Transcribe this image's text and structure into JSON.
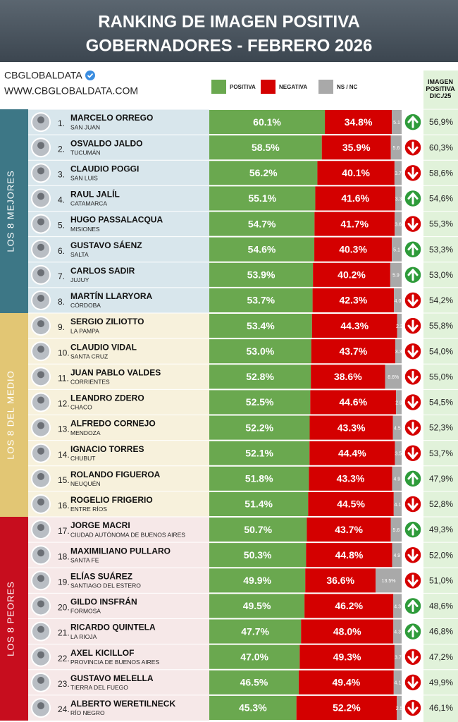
{
  "chart_data": {
    "type": "bar",
    "orientation": "horizontal",
    "stacked": true,
    "title": "RANKING DE IMAGEN POSITIVA",
    "subtitle": "GOBERNADORES - FEBRERO 2026",
    "brand": "CBGLOBALDATA",
    "website": "WWW.CBGLOBALDATA.COM",
    "xlim": [
      0,
      100
    ],
    "ranks": [
      "1.",
      "2.",
      "3.",
      "4.",
      "5.",
      "6.",
      "7.",
      "8.",
      "9.",
      "10.",
      "11.",
      "12.",
      "13.",
      "14.",
      "15.",
      "16.",
      "17.",
      "18.",
      "19.",
      "20.",
      "21.",
      "22.",
      "23.",
      "24."
    ],
    "categories": [
      "MARCELO ORREGO",
      "OSVALDO JALDO",
      "CLAUDIO POGGI",
      "RAUL JALÍL",
      "HUGO PASSALACQUA",
      "GUSTAVO SÁENZ",
      "CARLOS SADIR",
      "MARTÍN LLARYORA",
      "SERGIO ZILIOTTO",
      "CLAUDIO VIDAL",
      "JUAN PABLO VALDES",
      "LEANDRO ZDERO",
      "ALFREDO CORNEJO",
      "IGNACIO TORRES",
      "ROLANDO FIGUEROA",
      "ROGELIO FRIGERIO",
      "JORGE MACRI",
      "MAXIMILIANO PULLARO",
      "ELÍAS SUÁREZ",
      "GILDO INSFRÁN",
      "RICARDO QUINTELA",
      "AXEL KICILLOF",
      "GUSTAVO MELELLA",
      "ALBERTO WERETILNECK"
    ],
    "provinces": [
      "SAN JUAN",
      "TUCUMÁN",
      "SAN LUIS",
      "CATAMARCA",
      "MISIONES",
      "SALTA",
      "JUJUY",
      "CÓRDOBA",
      "LA PAMPA",
      "SANTA CRUZ",
      "CORRIENTES",
      "CHACO",
      "MENDOZA",
      "CHUBUT",
      "NEUQUÉN",
      "ENTRE RÍOS",
      "CIUDAD AUTÓNOMA DE BUENOS AIRES",
      "SANTA FE",
      "SANTIAGO DEL ESTERO",
      "FORMOSA",
      "LA RIOJA",
      "PROVINCIA DE BUENOS AIRES",
      "TIERRA DEL FUEGO",
      "RÍO NEGRO"
    ],
    "groups": [
      {
        "label": "LOS 8 MEJORES",
        "color": "#3d7786",
        "tint": "#d8e6ec"
      },
      {
        "label": "LOS 8 DEL MEDIO",
        "color": "#e2c674",
        "tint": "#f7f1dc"
      },
      {
        "label": "LOS 8 PEORES",
        "color": "#c70d1e",
        "tint": "#f6e8e8"
      }
    ],
    "series": [
      {
        "name": "POSITIVA",
        "color": "#6aa84f",
        "values": [
          60.1,
          58.5,
          56.2,
          55.1,
          54.7,
          54.6,
          53.9,
          53.7,
          53.4,
          53.0,
          52.8,
          52.5,
          52.2,
          52.1,
          51.8,
          51.4,
          50.7,
          50.3,
          49.9,
          49.5,
          47.7,
          47.0,
          46.5,
          45.3
        ],
        "value_labels": [
          "60.1%",
          "58.5%",
          "56.2%",
          "55.1%",
          "54.7%",
          "54.6%",
          "53.9%",
          "53.7%",
          "53.4%",
          "53.0%",
          "52.8%",
          "52.5%",
          "52.2%",
          "52.1%",
          "51.8%",
          "51.4%",
          "50.7%",
          "50.3%",
          "49.9%",
          "49.5%",
          "47.7%",
          "47.0%",
          "46.5%",
          "45.3%"
        ]
      },
      {
        "name": "NEGATIVA",
        "color": "#d40000",
        "values": [
          34.8,
          35.9,
          40.1,
          41.6,
          41.7,
          40.3,
          40.2,
          42.3,
          44.3,
          43.7,
          38.6,
          44.6,
          43.3,
          44.4,
          43.3,
          44.5,
          43.7,
          44.8,
          36.6,
          46.2,
          48.0,
          49.3,
          49.4,
          52.2
        ],
        "value_labels": [
          "34.8%",
          "35.9%",
          "40.1%",
          "41.6%",
          "41.7%",
          "40.3%",
          "40.2%",
          "42.3%",
          "44.3%",
          "43.7%",
          "38.6%",
          "44.6%",
          "43.3%",
          "44.4%",
          "43.3%",
          "44.5%",
          "43.7%",
          "44.8%",
          "36.6%",
          "46.2%",
          "48.0%",
          "49.3%",
          "49.4%",
          "52.2%"
        ]
      },
      {
        "name": "NS / NC",
        "color": "#a9a9a9",
        "values": [
          5.1,
          5.6,
          3.7,
          3.3,
          3.6,
          5.1,
          5.9,
          4.0,
          2.3,
          3.3,
          8.6,
          2.9,
          4.5,
          3.5,
          4.9,
          4.1,
          5.6,
          4.9,
          13.5,
          4.3,
          4.3,
          3.7,
          4.1,
          2.5
        ],
        "value_labels": [
          "5.1",
          "5.6",
          "3.7",
          "3.3",
          "3.6",
          "5.1",
          "5.9",
          "4.0",
          "2.3",
          "3.3",
          "8.6%",
          "2.9",
          "4.5",
          "3.5",
          "4.9",
          "4.1",
          "5.6",
          "4.9",
          "13.5%",
          "4.3",
          "4.3",
          "3.7",
          "4.1",
          "2.5"
        ]
      }
    ],
    "trend": [
      "up",
      "down",
      "down",
      "up",
      "down",
      "up",
      "up",
      "down",
      "down",
      "down",
      "down",
      "down",
      "down",
      "down",
      "up",
      "down",
      "up",
      "down",
      "down",
      "up",
      "up",
      "down",
      "down",
      "down"
    ],
    "trend_colors": {
      "up": "#2e9b3a",
      "down": "#d50000"
    },
    "previous_title": "IMAGEN POSITIVA DIC./25",
    "previous": {
      "values": [
        56.9,
        60.3,
        58.6,
        54.6,
        55.3,
        53.3,
        53.0,
        54.2,
        55.8,
        54.0,
        55.0,
        54.5,
        52.3,
        53.7,
        47.9,
        52.8,
        49.3,
        52.0,
        51.0,
        48.6,
        46.8,
        47.2,
        49.9,
        46.1
      ],
      "value_labels": [
        "56,9%",
        "60,3%",
        "58,6%",
        "54,6%",
        "55,3%",
        "53,3%",
        "53,0%",
        "54,2%",
        "55,8%",
        "54,0%",
        "55,0%",
        "54,5%",
        "52,3%",
        "53,7%",
        "47,9%",
        "52,8%",
        "49,3%",
        "52,0%",
        "51,0%",
        "48,6%",
        "46,8%",
        "47,2%",
        "49,9%",
        "46,1%"
      ],
      "color": "#e1f2da"
    }
  }
}
